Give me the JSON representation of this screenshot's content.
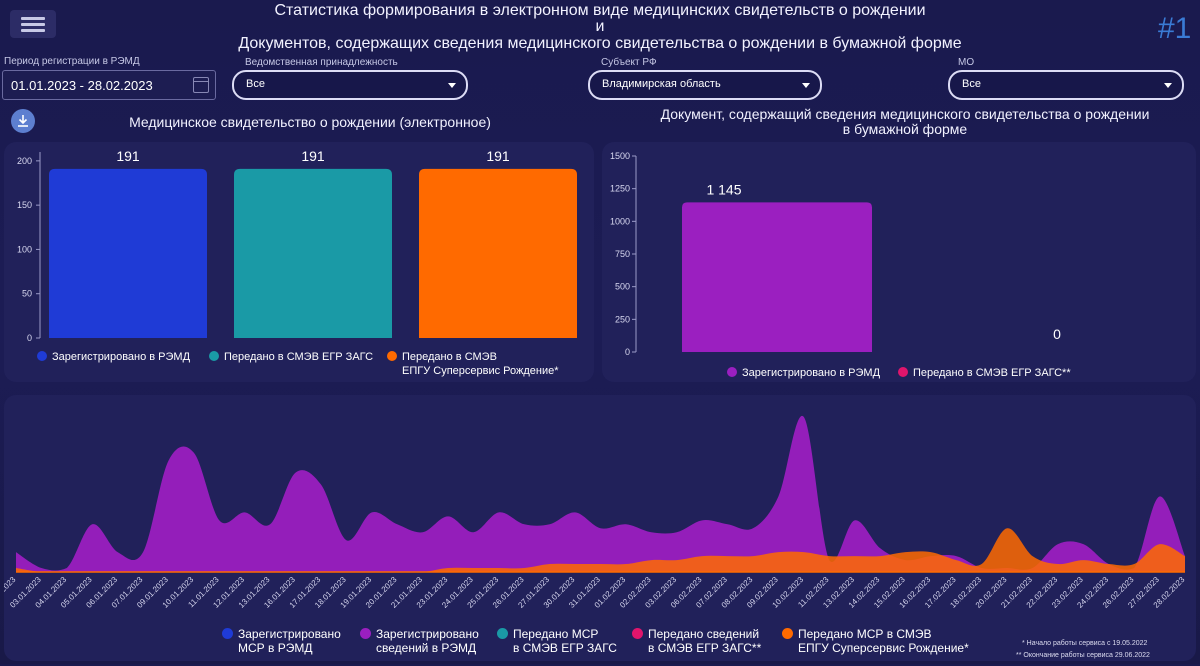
{
  "header": {
    "title_line1": "Статистика формирования в электронном виде медицинских свидетельств о рождении",
    "title_line2": "и",
    "title_line3": "Документов, содержащих сведения медицинского свидетельства о рождении в бумажной форме",
    "dashboard_tag": "#1"
  },
  "filters": {
    "period_label": "Период регистрации в РЭМД",
    "period_value": "01.01.2023 - 28.02.2023",
    "dept_label": "Ведомственная принадлежность",
    "dept_value": "Все",
    "region_label": "Субъект РФ",
    "region_value": "Владимирская область",
    "mo_label": "МО",
    "mo_value": "Все"
  },
  "colors": {
    "blue": "#1f3bd6",
    "teal": "#1a9aa6",
    "orange": "#ff6a00",
    "purple": "#9b1fc0",
    "pink": "#e0156c"
  },
  "chart_data": [
    {
      "type": "bar",
      "title": "Медицинское свидетельство о рождении (электронное)",
      "categories": [
        "Зарегистрировано в РЭМД",
        "Передано в СМЭВ ЕГР ЗАГС",
        "Передано в СМЭВ ЕПГУ Суперсервис Рождение*"
      ],
      "values": [
        191,
        191,
        191
      ],
      "data_labels": [
        "191",
        "191",
        "191"
      ],
      "yticks": [
        "0",
        "50",
        "100",
        "150",
        "200"
      ],
      "ylim": [
        0,
        210
      ],
      "legend": [
        {
          "label": "Зарегистрировано в РЭМД",
          "color": "#1f3bd6"
        },
        {
          "label": "Передано в СМЭВ ЕГР ЗАГС",
          "color": "#1a9aa6"
        },
        {
          "label_line1": "Передано в СМЭВ",
          "label_line2": "ЕПГУ Суперсервис Рождение*",
          "color": "#ff6a00"
        }
      ]
    },
    {
      "type": "bar",
      "title_line1": "Документ, содержащий сведения медицинского свидетельства о рождении",
      "title_line2": "в бумажной форме",
      "categories": [
        "Зарегистрировано в РЭМД",
        "Передано в СМЭВ ЕГР ЗАГС**"
      ],
      "values": [
        1145,
        0
      ],
      "data_labels": [
        "1 145",
        "0"
      ],
      "yticks": [
        "0",
        "250",
        "500",
        "750",
        "1000",
        "1250",
        "1500"
      ],
      "ylim": [
        0,
        1500
      ],
      "legend": [
        {
          "label": "Зарегистрировано в РЭМД",
          "color": "#9b1fc0"
        },
        {
          "label": "Передано в СМЭВ ЕГР ЗАГС**",
          "color": "#e0156c"
        }
      ]
    },
    {
      "type": "area",
      "dates": [
        "02.01.2023",
        "03.01.2023",
        "04.01.2023",
        "05.01.2023",
        "06.01.2023",
        "07.01.2023",
        "09.01.2023",
        "10.01.2023",
        "11.01.2023",
        "12.01.2023",
        "13.01.2023",
        "16.01.2023",
        "17.01.2023",
        "18.01.2023",
        "19.01.2023",
        "20.01.2023",
        "21.01.2023",
        "23.01.2023",
        "24.01.2023",
        "25.01.2023",
        "26.01.2023",
        "27.01.2023",
        "30.01.2023",
        "31.01.2023",
        "01.02.2023",
        "02.02.2023",
        "03.02.2023",
        "06.02.2023",
        "07.02.2023",
        "08.02.2023",
        "09.02.2023",
        "10.02.2023",
        "11.02.2023",
        "13.02.2023",
        "14.02.2023",
        "15.02.2023",
        "16.02.2023",
        "17.02.2023",
        "18.02.2023",
        "20.02.2023",
        "21.02.2023",
        "22.02.2023",
        "23.02.2023",
        "24.02.2023",
        "26.02.2023",
        "27.02.2023",
        "28.02.2023"
      ],
      "series": [
        {
          "name": "Зарегистрировано сведений в РЭМД",
          "color": "#9b1fc0",
          "values": [
            5,
            1,
            1,
            12,
            5,
            5,
            28,
            30,
            13,
            15,
            12,
            25,
            22,
            8,
            15,
            12,
            10,
            14,
            10,
            15,
            12,
            12,
            15,
            11,
            12,
            10,
            10,
            13,
            12,
            11,
            19,
            39,
            3,
            13,
            6,
            3,
            4,
            4,
            1,
            1,
            1,
            7,
            7,
            2,
            1,
            19,
            4
          ]
        },
        {
          "name": "Передано МСР в СМЭВ ЕПГУ Суперсервис Рождение*",
          "color": "#ff6a00",
          "values": [
            1,
            0,
            0,
            0,
            0,
            0,
            0,
            0,
            0,
            0,
            0,
            0,
            0,
            0,
            0,
            0,
            0,
            1,
            1,
            1,
            1,
            2,
            2,
            2,
            2,
            3,
            3,
            4,
            4,
            4,
            5,
            5,
            4,
            4,
            4,
            5,
            5,
            3,
            2,
            11,
            4,
            2,
            3,
            2,
            2,
            7,
            4
          ]
        }
      ],
      "legend": [
        {
          "line1": "Зарегистрировано",
          "line2": "МСР в РЭМД",
          "color": "#1f3bd6"
        },
        {
          "line1": "Зарегистрировано",
          "line2": "сведений в РЭМД",
          "color": "#9b1fc0"
        },
        {
          "line1": "Передано МСР",
          "line2": "в СМЭВ ЕГР ЗАГС",
          "color": "#1a9aa6"
        },
        {
          "line1": "Передано сведений",
          "line2": "в СМЭВ ЕГР ЗАГС**",
          "color": "#e0156c"
        },
        {
          "line1": "Передано МСР в СМЭВ",
          "line2": "ЕПГУ Суперсервис Рождение*",
          "color": "#ff6a00"
        }
      ]
    }
  ],
  "footnotes": {
    "note1": "* Начало работы сервиса с 19.05.2022",
    "note2": "** Окончание работы сервиса 29.06.2022"
  }
}
